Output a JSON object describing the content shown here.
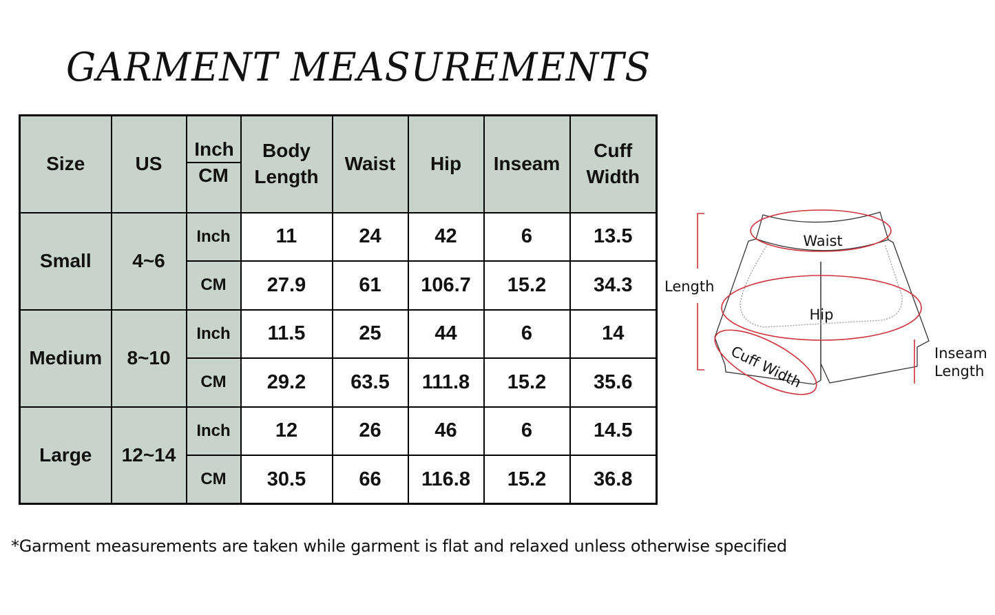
{
  "title": "GARMENT MEASUREMENTS",
  "table": {
    "headers": {
      "size": "Size",
      "us": "US",
      "unit_top": "Inch",
      "unit_bottom": "CM",
      "body_length": [
        "Body",
        "Length"
      ],
      "waist": "Waist",
      "hip": "Hip",
      "inseam": "Inseam",
      "cuff_width": [
        "Cuff",
        "Width"
      ]
    },
    "rows": [
      {
        "size": "Small",
        "us": "4~6",
        "inch": {
          "unit": "Inch",
          "values": [
            "11",
            "24",
            "42",
            "6",
            "13.5"
          ]
        },
        "cm": {
          "unit": "CM",
          "values": [
            "27.9",
            "61",
            "106.7",
            "15.2",
            "34.3"
          ]
        }
      },
      {
        "size": "Medium",
        "us": "8~10",
        "inch": {
          "unit": "Inch",
          "values": [
            "11.5",
            "25",
            "44",
            "6",
            "14"
          ]
        },
        "cm": {
          "unit": "CM",
          "values": [
            "29.2",
            "63.5",
            "111.8",
            "15.2",
            "35.6"
          ]
        }
      },
      {
        "size": "Large",
        "us": "12~14",
        "inch": {
          "unit": "Inch",
          "values": [
            "12",
            "26",
            "46",
            "6",
            "14.5"
          ]
        },
        "cm": {
          "unit": "CM",
          "values": [
            "30.5",
            "66",
            "116.8",
            "15.2",
            "36.8"
          ]
        }
      }
    ],
    "colors": {
      "header_bg": "#c8d3cc",
      "value_bg": "#ffffff",
      "border": "#000000"
    }
  },
  "diagram": {
    "labels": {
      "waist": "Waist",
      "hip": "Hip",
      "length": "Length",
      "cuff_width": "Cuff Width",
      "inseam_1": "Inseam",
      "inseam_2": "Length"
    },
    "highlight_color": "#d0303a"
  },
  "footnote": "*Garment measurements are taken while garment is flat and relaxed unless otherwise specified"
}
